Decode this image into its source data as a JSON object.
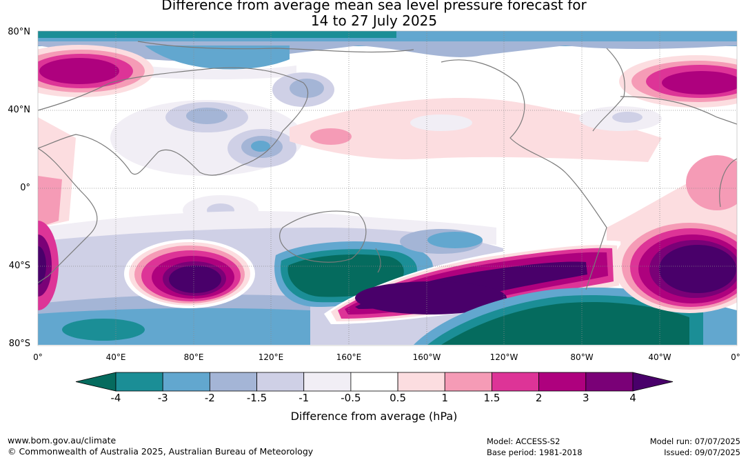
{
  "title": {
    "line1": "Difference from average mean sea level pressure forecast for",
    "line2": "14 to 27 July 2025"
  },
  "map": {
    "lat_labels": [
      "80°N",
      "40°N",
      "0°",
      "40°S",
      "80°S"
    ],
    "lon_labels": [
      "0°",
      "40°E",
      "80°E",
      "120°E",
      "160°E",
      "160°W",
      "120°W",
      "80°W",
      "40°W",
      "0°"
    ],
    "palette": {
      "n4": "#056b5e",
      "n3": "#1b8e96",
      "n2": "#62a7cf",
      "n15": "#a4b5d6",
      "n1": "#cfd0e6",
      "n05": "#f1eef5",
      "zero": "#ffffff",
      "p05": "#fcdde0",
      "p1": "#f59bb6",
      "p15": "#dd3497",
      "p2": "#ae017e",
      "p3": "#7a0177",
      "p4": "#49006a"
    }
  },
  "colorbar": {
    "ticks": [
      "-4",
      "-3",
      "-2",
      "-1.5",
      "-1",
      "-0.5",
      "0.5",
      "1",
      "1.5",
      "2",
      "3",
      "4"
    ],
    "colors": [
      "#056b5e",
      "#1b8e96",
      "#62a7cf",
      "#a4b5d6",
      "#cfd0e6",
      "#f1eef5",
      "#ffffff",
      "#fcdde0",
      "#f59bb6",
      "#dd3497",
      "#ae017e",
      "#7a0177",
      "#49006a"
    ],
    "caption": "Difference from average (hPa)"
  },
  "footer": {
    "url": "www.bom.gov.au/climate",
    "copyright": "© Commonwealth of Australia 2025, Australian Bureau of Meteorology",
    "model": "Model: ACCESS-S2",
    "base_period": "Base period: 1981-2018",
    "model_run": "Model run: 07/07/2025",
    "issued": "Issued: 09/07/2025"
  }
}
